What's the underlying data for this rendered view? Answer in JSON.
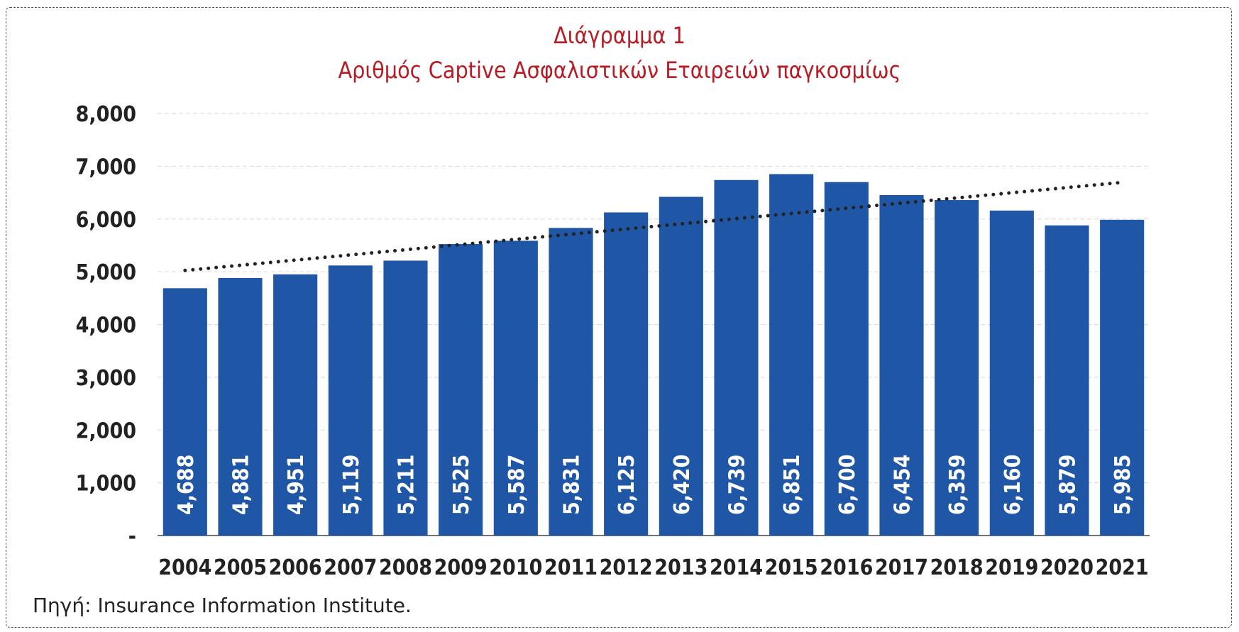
{
  "title_line1": "Διάγραμμα 1",
  "title_line2": "Αριθμός Captive Ασφαλιστικών Εταιρειών παγκοσμίως",
  "source": "Πηγή: Insurance Information Institute.",
  "chart_data": {
    "type": "bar",
    "categories": [
      "2004",
      "2005",
      "2006",
      "2007",
      "2008",
      "2009",
      "2010",
      "2011",
      "2012",
      "2013",
      "2014",
      "2015",
      "2016",
      "2017",
      "2018",
      "2019",
      "2020",
      "2021"
    ],
    "values": [
      4688,
      4881,
      4951,
      5119,
      5211,
      5525,
      5587,
      5831,
      6125,
      6420,
      6739,
      6851,
      6700,
      6454,
      6359,
      6160,
      5879,
      5985
    ],
    "data_labels": [
      "4,688",
      "4,881",
      "4,951",
      "5,119",
      "5,211",
      "5,525",
      "5,587",
      "5,831",
      "6,125",
      "6,420",
      "6,739",
      "6,851",
      "6,700",
      "6,454",
      "6,359",
      "6,160",
      "5,879",
      "5,985"
    ],
    "y_ticks": [
      0,
      1000,
      2000,
      3000,
      4000,
      5000,
      6000,
      7000,
      8000
    ],
    "y_tick_labels": [
      "-",
      "1,000",
      "2,000",
      "3,000",
      "4,000",
      "5,000",
      "6,000",
      "7,000",
      "8,000"
    ],
    "ylim": [
      0,
      8000
    ],
    "grid": true,
    "trendline": {
      "type": "linear",
      "style": "dotted"
    },
    "colors": {
      "bar": "#1f56a6",
      "trend": "#222222",
      "grid": "#d9d9d9",
      "title": "#b71c25"
    }
  }
}
